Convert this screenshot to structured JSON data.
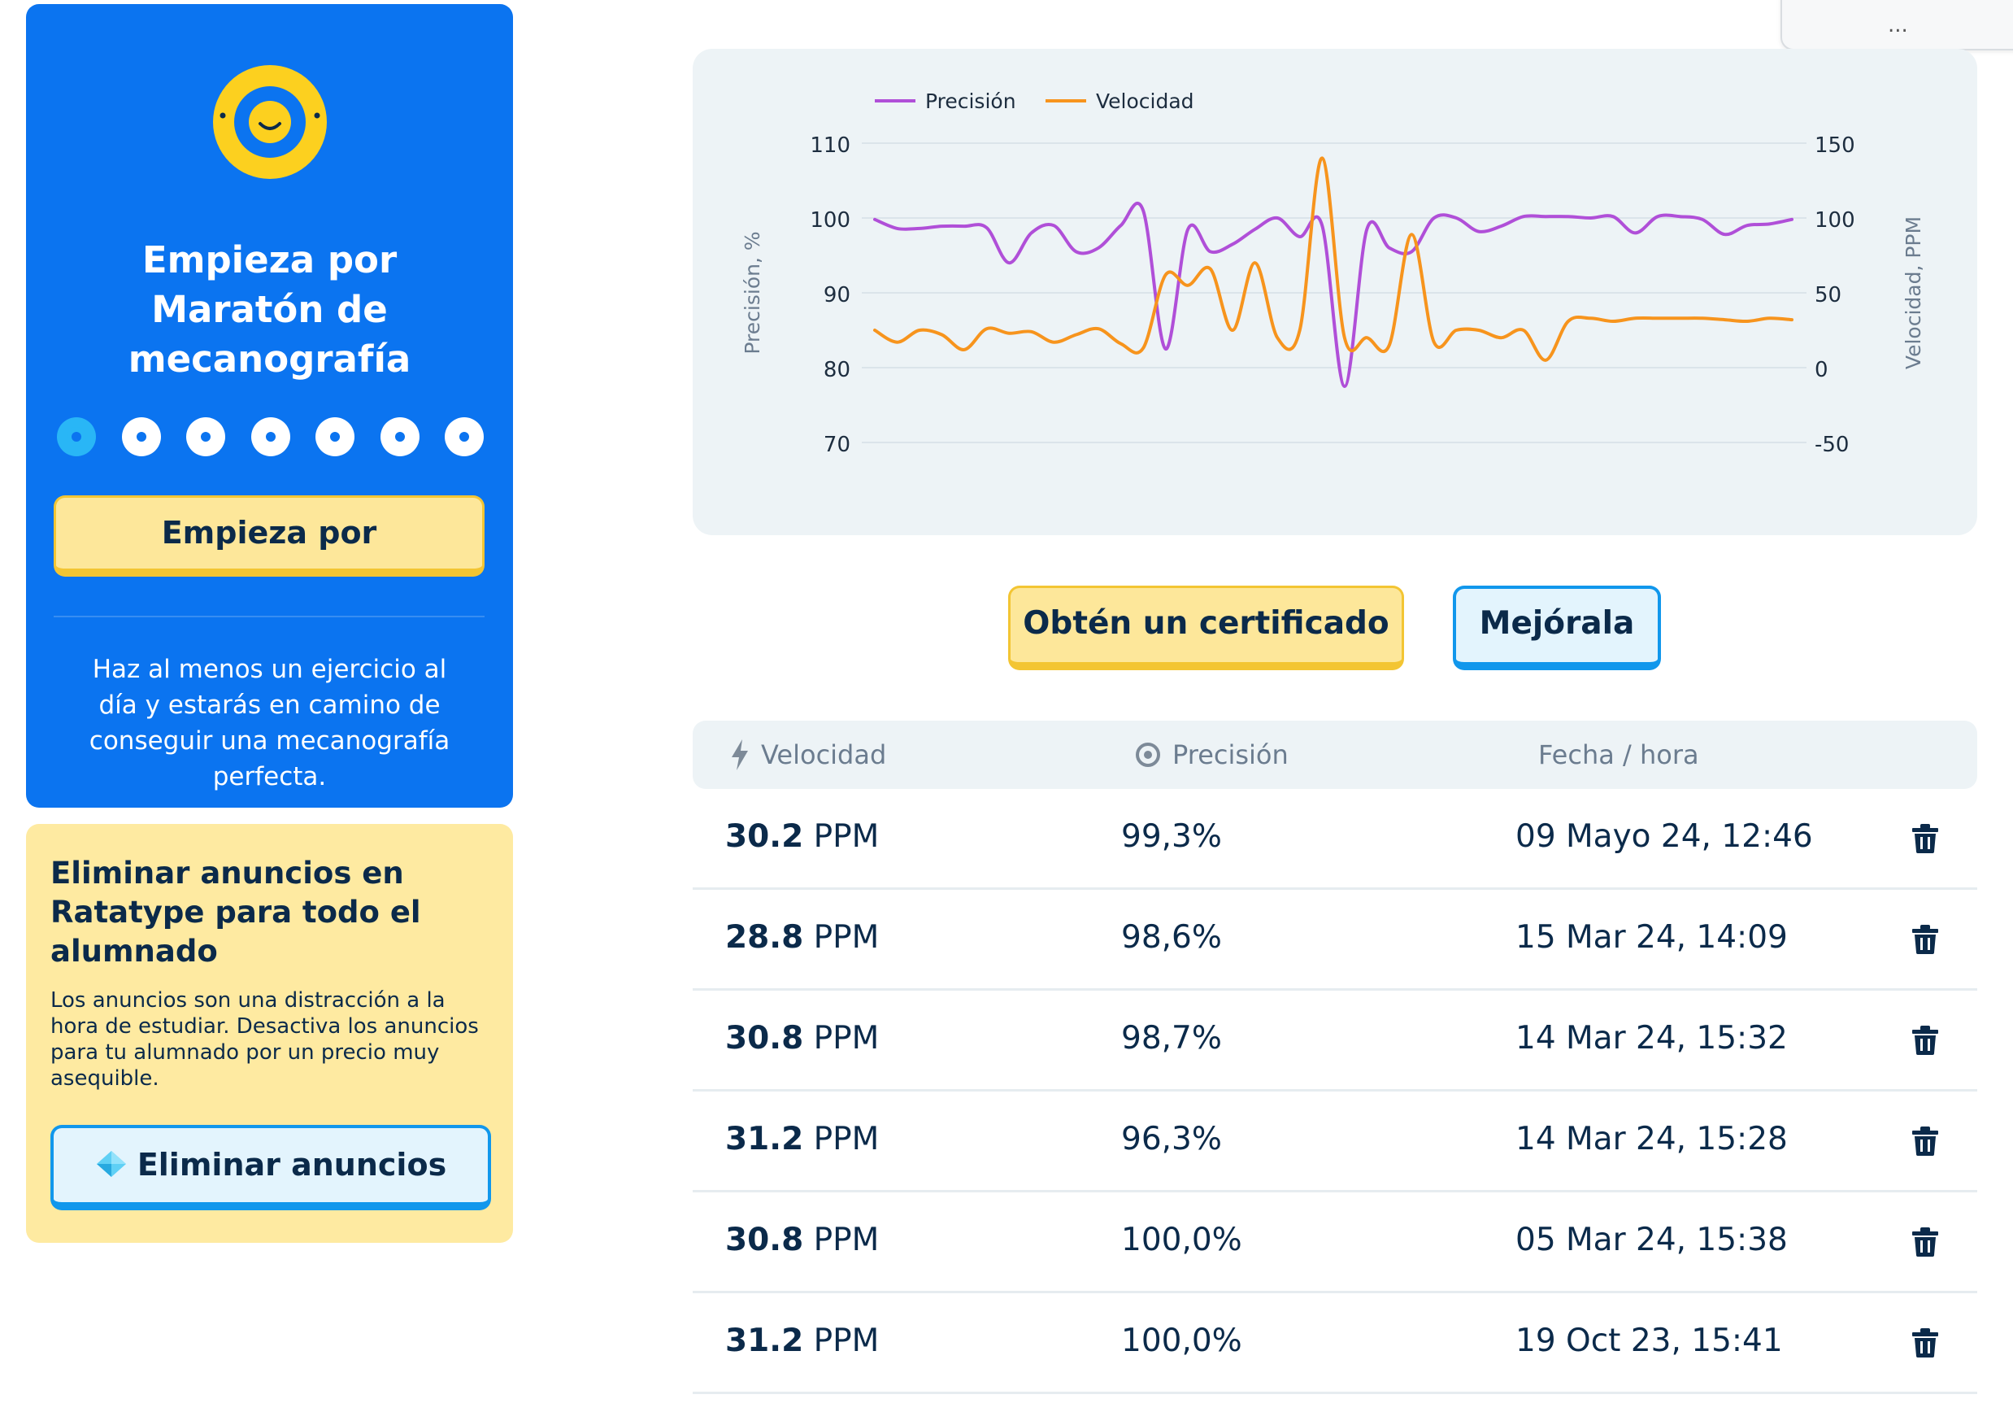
{
  "course_card": {
    "title": "Empieza por Maratón de mecanografía",
    "progress_total": 7,
    "progress_current": 1,
    "start_button": "Empieza por",
    "tip": "Haz al menos un ejercicio al día y estarás en camino de conseguir una mecanografía perfecta."
  },
  "ads_card": {
    "title": "Eliminar anuncios en Ratatype para todo el alumnado",
    "text": "Los anuncios son una distracción a la hora de estudiar. Desactiva los anuncios para tu alumnado por un precio muy asequible.",
    "button": "Eliminar anuncios"
  },
  "popup": {
    "text": "..."
  },
  "colors": {
    "card_blue": "#0b74f0",
    "accent_yellow": "#fde79a",
    "accent_light_blue": "#e3f4fd",
    "precision_line": "#b04fd8",
    "speed_line": "#f7941d"
  },
  "chart_data": {
    "type": "line",
    "legend": [
      "Precisión",
      "Velocidad"
    ],
    "legend_position": "top-left",
    "ylabel": "Precisión, %",
    "y2label": "Velocidad, PPM",
    "ylim": [
      70,
      110
    ],
    "y2lim": [
      -50,
      150
    ],
    "yticks": [
      "110",
      "100",
      "90",
      "80",
      "70"
    ],
    "y2ticks": [
      "150",
      "100",
      "50",
      "0",
      "-50"
    ],
    "grid": true,
    "series": [
      {
        "name": "Precisión",
        "axis": "left",
        "color": "#b04fd8",
        "values": [
          99.8,
          98.6,
          98.6,
          98.9,
          98.9,
          98.7,
          94.0,
          98.0,
          99.0,
          95.5,
          96.0,
          99.0,
          101.0,
          82.5,
          98.5,
          95.5,
          96.5,
          98.5,
          100.0,
          97.5,
          99.0,
          77.5,
          98.5,
          96.0,
          95.5,
          100.0,
          100.0,
          98.2,
          98.9,
          100.2,
          100.2,
          100.2,
          100.0,
          100.2,
          98.0,
          100.2,
          100.2,
          99.8,
          97.8,
          99.0,
          99.2,
          99.8
        ]
      },
      {
        "name": "Velocidad",
        "axis": "right",
        "color": "#f7941d",
        "values": [
          25,
          17,
          25,
          22,
          12,
          26,
          23,
          24,
          17,
          22,
          26,
          16,
          13,
          62,
          55,
          66,
          25,
          70,
          20,
          25,
          140,
          20,
          20,
          15,
          89,
          17,
          25,
          25,
          20,
          25,
          5,
          31,
          33,
          31,
          33,
          33,
          33,
          33,
          32,
          31,
          33,
          32
        ]
      }
    ]
  },
  "actions": {
    "certificate": "Obtén un certificado",
    "improve": "Mejórala"
  },
  "table": {
    "headers": {
      "speed": "Velocidad",
      "precision": "Precisión",
      "date": "Fecha / hora"
    },
    "rows": [
      {
        "speed": "30.2",
        "unit": "PPM",
        "precision": "99,3%",
        "date": "09 Mayo 24, 12:46"
      },
      {
        "speed": "28.8",
        "unit": "PPM",
        "precision": "98,6%",
        "date": "15 Mar 24, 14:09"
      },
      {
        "speed": "30.8",
        "unit": "PPM",
        "precision": "98,7%",
        "date": "14 Mar 24, 15:32"
      },
      {
        "speed": "31.2",
        "unit": "PPM",
        "precision": "96,3%",
        "date": "14 Mar 24, 15:28"
      },
      {
        "speed": "30.8",
        "unit": "PPM",
        "precision": "100,0%",
        "date": "05 Mar 24, 15:38"
      },
      {
        "speed": "31.2",
        "unit": "PPM",
        "precision": "100,0%",
        "date": "19 Oct 23, 15:41"
      }
    ]
  }
}
